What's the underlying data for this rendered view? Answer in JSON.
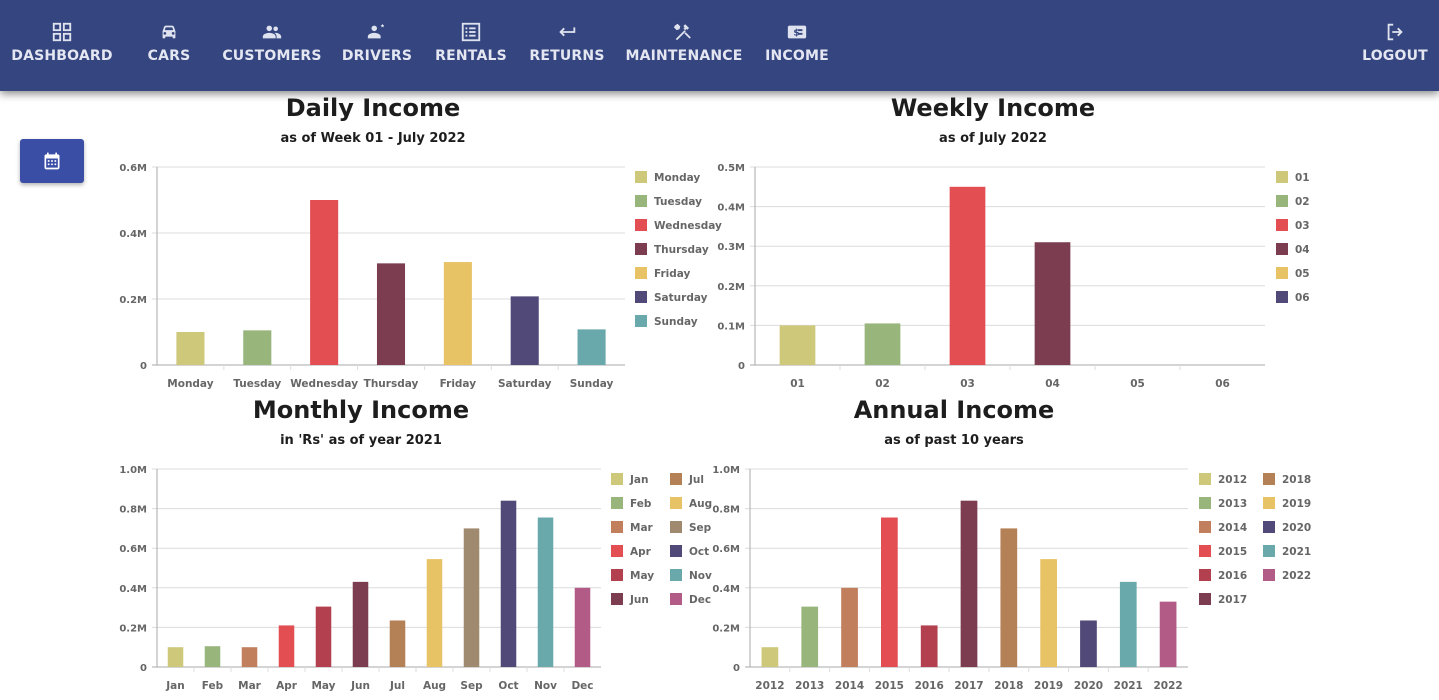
{
  "nav": {
    "items": [
      {
        "label": "DASHBOARD",
        "icon": "grid-icon"
      },
      {
        "label": "CARS",
        "icon": "car-icon"
      },
      {
        "label": "CUSTOMERS",
        "icon": "people-icon"
      },
      {
        "label": "DRIVERS",
        "icon": "driver-icon"
      },
      {
        "label": "RENTALS",
        "icon": "list-icon"
      },
      {
        "label": "RETURNS",
        "icon": "return-arrow-icon"
      },
      {
        "label": "MAINTENANCE",
        "icon": "tools-icon"
      },
      {
        "label": "INCOME",
        "icon": "money-icon"
      }
    ],
    "logout": {
      "label": "LOGOUT",
      "icon": "logout-icon"
    }
  },
  "calendar_button": {
    "icon": "calendar-icon"
  },
  "colors": {
    "nav_bg": "#35457f",
    "button": "#3a4ea6",
    "palette": [
      "#cdc87a",
      "#98b57c",
      "#e24e52",
      "#7b3d4f",
      "#e8c366",
      "#514a78",
      "#6aa9ab",
      "#c17f5e",
      "#b3404f",
      "#b48056",
      "#a08a6f",
      "#b25b86"
    ]
  },
  "chart_data": [
    {
      "type": "bar",
      "title": "Daily Income",
      "subtitle": "as of Week 01 - July 2022",
      "categories": [
        "Monday",
        "Tuesday",
        "Wednesday",
        "Thursday",
        "Friday",
        "Saturday",
        "Sunday"
      ],
      "values": [
        100000,
        105000,
        500000,
        308000,
        312000,
        208000,
        108000
      ],
      "colors": [
        "#cdc87a",
        "#98b57c",
        "#e24e52",
        "#7b3d4f",
        "#e8c366",
        "#514a78",
        "#6aa9ab"
      ],
      "ylim": [
        0,
        600000
      ],
      "yticks": [
        {
          "v": 0,
          "label": "0"
        },
        {
          "v": 200000,
          "label": "0.2M"
        },
        {
          "v": 400000,
          "label": "0.4M"
        },
        {
          "v": 600000,
          "label": "0.6M"
        }
      ],
      "legend": [
        "Monday",
        "Tuesday",
        "Wednesday",
        "Thursday",
        "Friday",
        "Saturday",
        "Sunday"
      ],
      "legend_position": "right",
      "grid": true
    },
    {
      "type": "bar",
      "title": "Weekly Income",
      "subtitle": "as of July 2022",
      "categories": [
        "01",
        "02",
        "03",
        "04",
        "05",
        "06"
      ],
      "values": [
        100000,
        105000,
        450000,
        310000,
        0,
        0
      ],
      "colors": [
        "#cdc87a",
        "#98b57c",
        "#e24e52",
        "#7b3d4f",
        "#e8c366",
        "#514a78"
      ],
      "ylim": [
        0,
        500000
      ],
      "yticks": [
        {
          "v": 0,
          "label": "0"
        },
        {
          "v": 100000,
          "label": "0.1M"
        },
        {
          "v": 200000,
          "label": "0.2M"
        },
        {
          "v": 300000,
          "label": "0.3M"
        },
        {
          "v": 400000,
          "label": "0.4M"
        },
        {
          "v": 500000,
          "label": "0.5M"
        }
      ],
      "legend": [
        "01",
        "02",
        "03",
        "04",
        "05",
        "06"
      ],
      "legend_position": "right",
      "grid": true
    },
    {
      "type": "bar",
      "title": "Monthly Income",
      "subtitle": "in 'Rs' as of year 2021",
      "categories": [
        "Jan",
        "Feb",
        "Mar",
        "Apr",
        "May",
        "Jun",
        "Jul",
        "Aug",
        "Sep",
        "Oct",
        "Nov",
        "Dec"
      ],
      "values": [
        100000,
        105000,
        100000,
        210000,
        305000,
        430000,
        235000,
        545000,
        700000,
        840000,
        755000,
        400000
      ],
      "colors": [
        "#cdc87a",
        "#98b57c",
        "#c17f5e",
        "#e24e52",
        "#b3404f",
        "#7b3d4f",
        "#b48056",
        "#e8c366",
        "#a08a6f",
        "#514a78",
        "#6aa9ab",
        "#b25b86"
      ],
      "ylim": [
        0,
        1000000
      ],
      "yticks": [
        {
          "v": 0,
          "label": "0"
        },
        {
          "v": 200000,
          "label": "0.2M"
        },
        {
          "v": 400000,
          "label": "0.4M"
        },
        {
          "v": 600000,
          "label": "0.6M"
        },
        {
          "v": 800000,
          "label": "0.8M"
        },
        {
          "v": 1000000,
          "label": "1.0M"
        }
      ],
      "legend": [
        "Jan",
        "Feb",
        "Mar",
        "Apr",
        "May",
        "Jun",
        "Jul",
        "Aug",
        "Sep",
        "Oct",
        "Nov",
        "Dec"
      ],
      "legend_position": "right",
      "grid": true
    },
    {
      "type": "bar",
      "title": "Annual Income",
      "subtitle": "as of past 10 years",
      "categories": [
        "2012",
        "2013",
        "2014",
        "2015",
        "2016",
        "2017",
        "2018",
        "2019",
        "2020",
        "2021",
        "2022"
      ],
      "values": [
        100000,
        305000,
        400000,
        755000,
        210000,
        840000,
        700000,
        545000,
        235000,
        430000,
        330000
      ],
      "colors": [
        "#cdc87a",
        "#98b57c",
        "#c17f5e",
        "#e24e52",
        "#b3404f",
        "#7b3d4f",
        "#b48056",
        "#e8c366",
        "#514a78",
        "#6aa9ab",
        "#b25b86"
      ],
      "ylim": [
        0,
        1000000
      ],
      "yticks": [
        {
          "v": 0,
          "label": "0"
        },
        {
          "v": 200000,
          "label": "0.2M"
        },
        {
          "v": 400000,
          "label": "0.4M"
        },
        {
          "v": 600000,
          "label": "0.6M"
        },
        {
          "v": 800000,
          "label": "0.8M"
        },
        {
          "v": 1000000,
          "label": "1.0M"
        }
      ],
      "legend": [
        "2012",
        "2013",
        "2014",
        "2015",
        "2016",
        "2017",
        "2018",
        "2019",
        "2020",
        "2021",
        "2022"
      ],
      "legend_position": "right",
      "grid": true
    }
  ]
}
